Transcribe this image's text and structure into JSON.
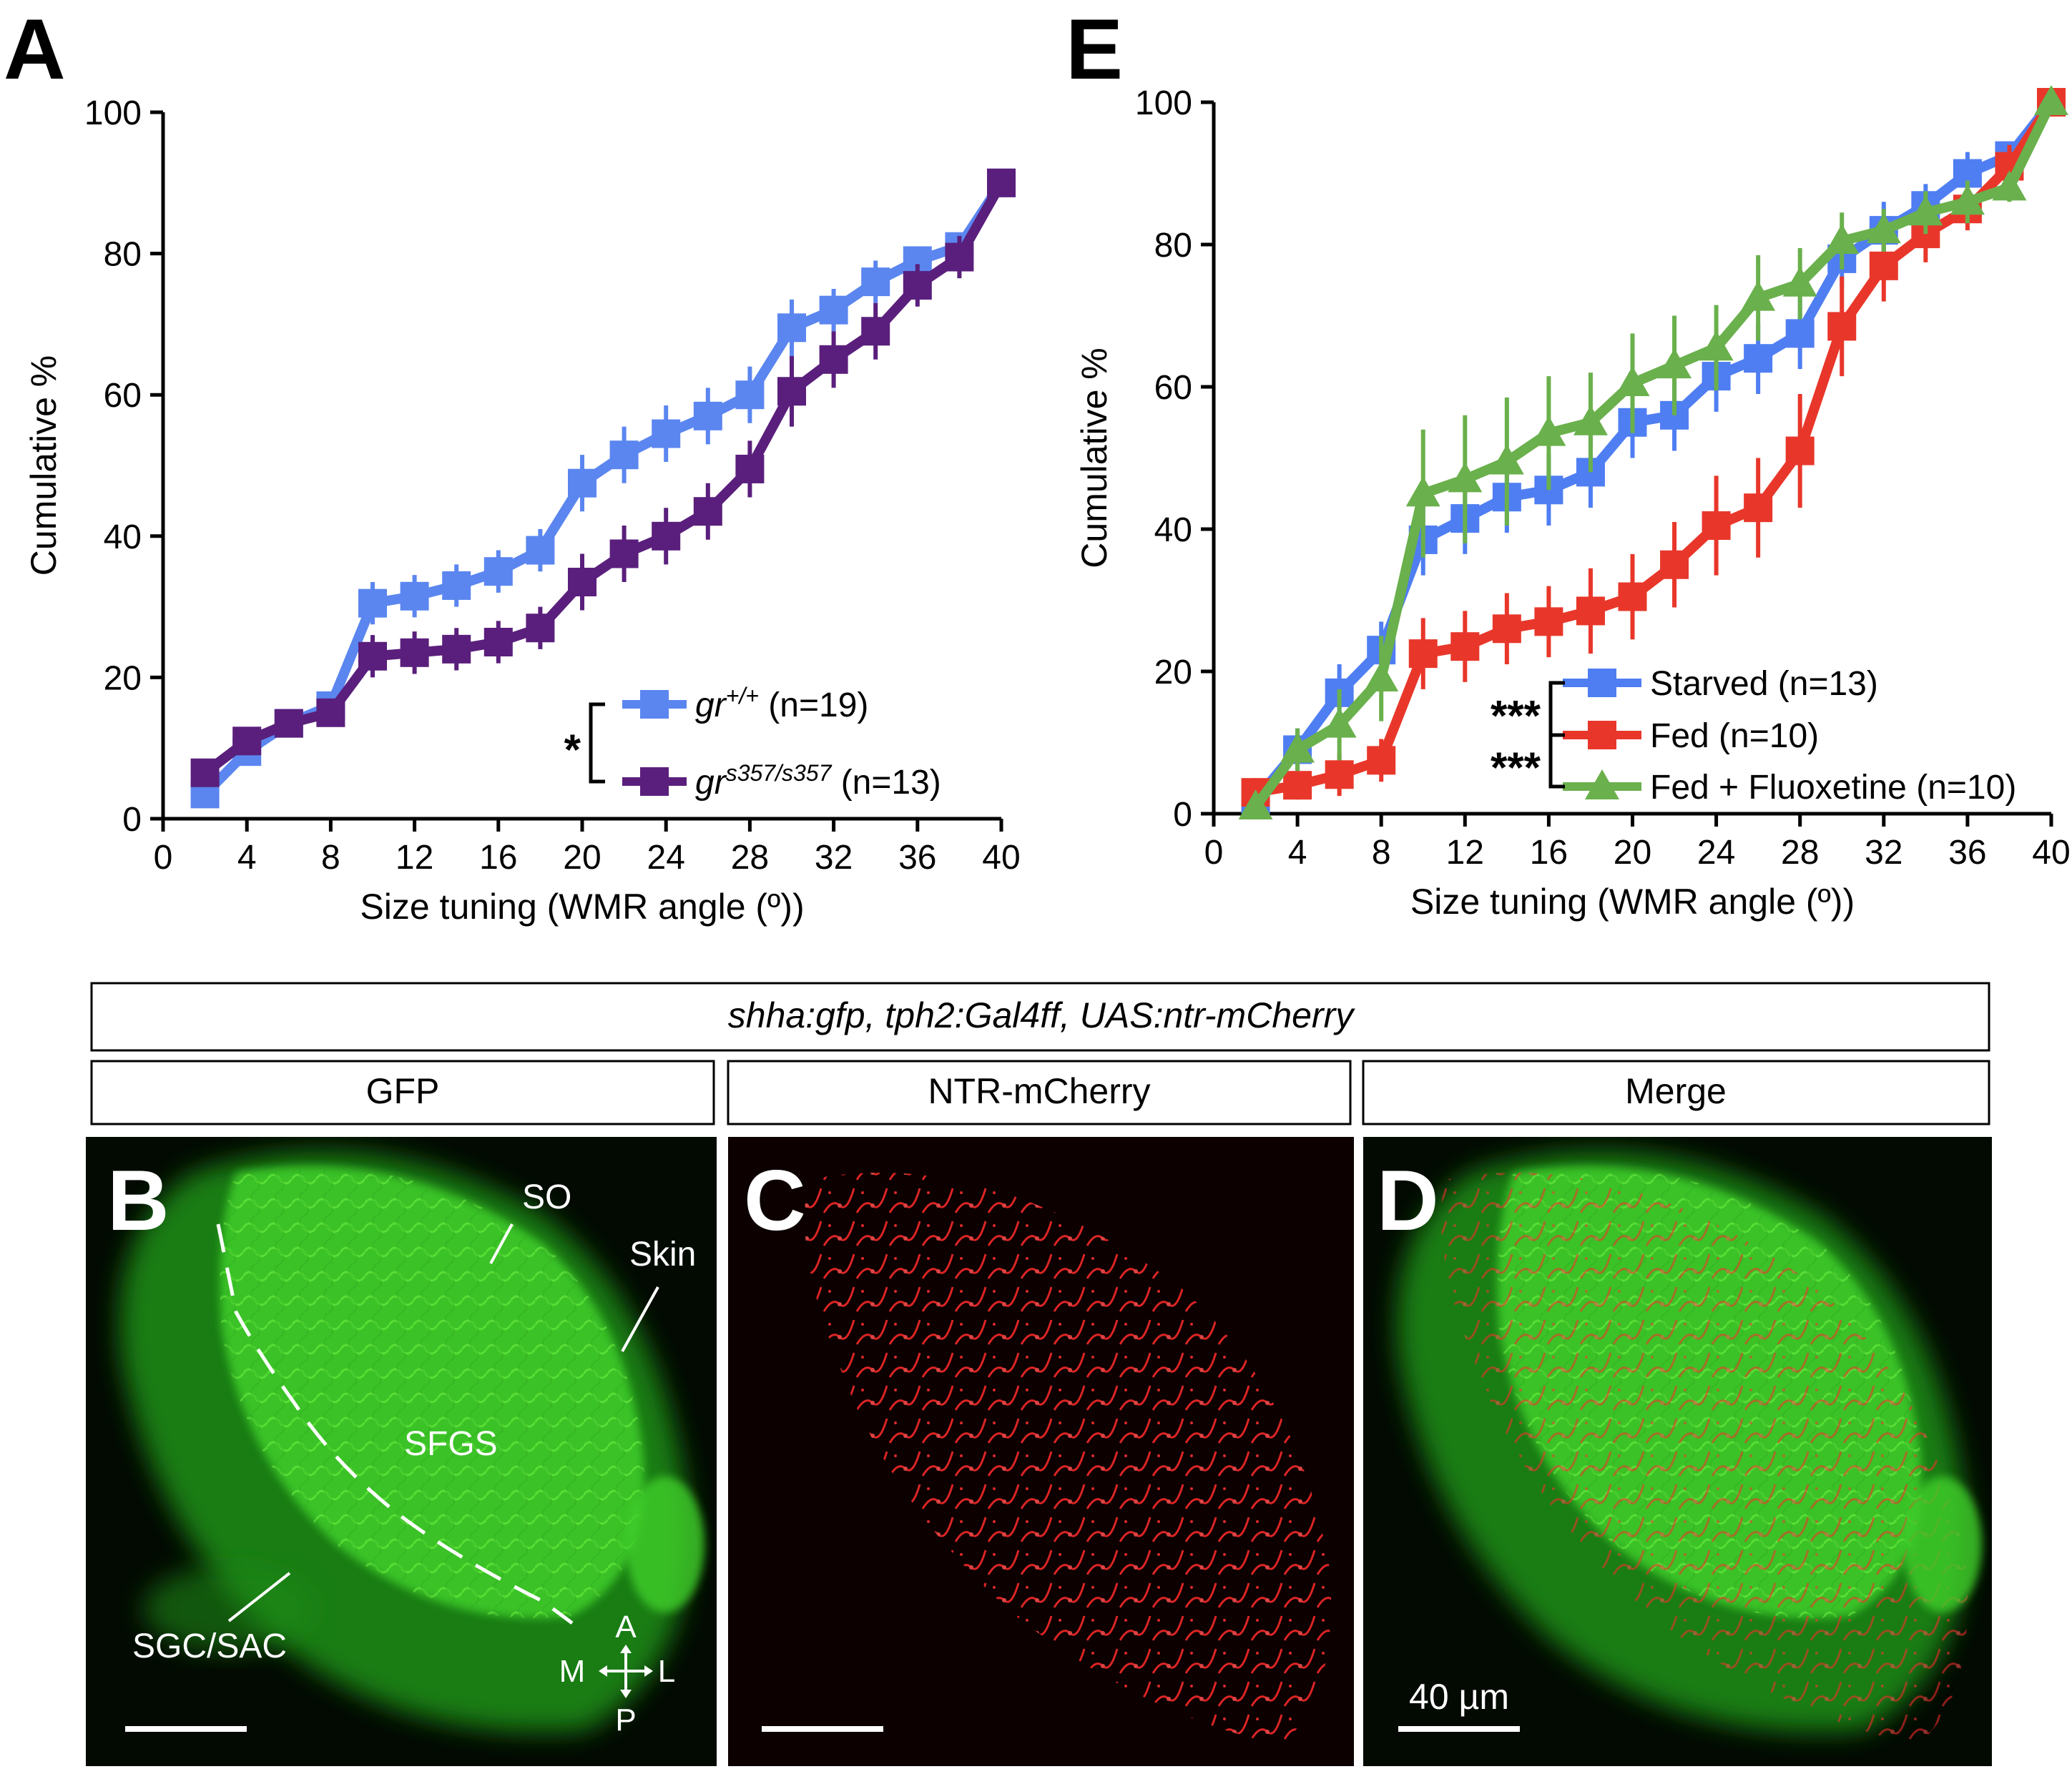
{
  "colors": {
    "gr_wt": "#5b86f0",
    "gr_mut": "#5a1f7c",
    "starved": "#4f7ef2",
    "fed": "#e8372a",
    "fluoxetine": "#6ab04c",
    "gfp": "#3fcf2a",
    "mcherry": "#e02020"
  },
  "panels": {
    "A": "A",
    "B": "B",
    "C": "C",
    "D": "D",
    "E": "E"
  },
  "header": {
    "genotype": "shha:gfp, tph2:Gal4ff, UAS:ntr-mCherry",
    "col_gfp": "GFP",
    "col_mcherry": "NTR-mCherry",
    "col_merge": "Merge"
  },
  "image_annotations": {
    "so": "SO",
    "skin": "Skin",
    "sfgs": "SFGS",
    "sgc_sac": "SGC/SAC",
    "axis_a": "A",
    "axis_p": "P",
    "axis_m": "M",
    "axis_l": "L",
    "scale_label": "40 µm"
  },
  "chart_data": [
    {
      "id": "A",
      "type": "line",
      "xlabel": "Size tuning (WMR angle (º))",
      "ylabel": "Cumulative %",
      "xlim": [
        0,
        40
      ],
      "ylim": [
        0,
        100
      ],
      "xticks": [
        0,
        4,
        8,
        12,
        16,
        20,
        24,
        28,
        32,
        36,
        40
      ],
      "yticks": [
        0,
        20,
        40,
        60,
        80,
        100
      ],
      "x": [
        2,
        4,
        6,
        8,
        10,
        12,
        14,
        16,
        18,
        20,
        22,
        24,
        26,
        28,
        30,
        32,
        34,
        36,
        38,
        40
      ],
      "series": [
        {
          "name": "gr+/+ (n=19)",
          "legend_base": "gr",
          "legend_sup": "+/+",
          "legend_rest": " (n=19)",
          "color": "#5b86f0",
          "marker": "square",
          "values": [
            3.5,
            9.5,
            13.5,
            16,
            30.5,
            31.5,
            33,
            35,
            38,
            47.5,
            51.5,
            54.5,
            57,
            60,
            69.5,
            72,
            76,
            79,
            81,
            90
          ],
          "errors": [
            2,
            2,
            2,
            2,
            3,
            3,
            3,
            3,
            3,
            4,
            4,
            4,
            4,
            4,
            4,
            3,
            3,
            2,
            2,
            0
          ]
        },
        {
          "name": "grs357/s357 (n=13)",
          "legend_base": "gr",
          "legend_sup": "s357/s357",
          "legend_rest": " (n=13)",
          "color": "#5a1f7c",
          "marker": "square",
          "values": [
            6.5,
            11,
            13.5,
            15,
            23,
            23.5,
            24,
            25,
            27,
            33.5,
            37.5,
            40,
            43.5,
            49.5,
            60.5,
            65,
            69,
            75.5,
            79.5,
            90
          ],
          "errors": [
            2,
            2,
            2,
            2,
            3,
            3,
            3,
            3,
            3,
            4,
            4,
            4,
            4,
            4,
            5,
            4,
            4,
            3,
            3,
            0
          ]
        }
      ],
      "significance": "*"
    },
    {
      "id": "E",
      "type": "line",
      "xlabel": "Size tuning (WMR angle (º))",
      "ylabel": "Cumulative %",
      "xlim": [
        0,
        40
      ],
      "ylim": [
        0,
        100
      ],
      "xticks": [
        0,
        4,
        8,
        12,
        16,
        20,
        24,
        28,
        32,
        36,
        40
      ],
      "yticks": [
        0,
        20,
        40,
        60,
        80,
        100
      ],
      "x": [
        2,
        4,
        6,
        8,
        10,
        12,
        14,
        16,
        18,
        20,
        22,
        24,
        26,
        28,
        30,
        32,
        34,
        36,
        38,
        40
      ],
      "series": [
        {
          "name": "Starved (n=13)",
          "color": "#4f7ef2",
          "marker": "square",
          "values": [
            2,
            9,
            17,
            23,
            38.5,
            41.5,
            44.5,
            45.5,
            48,
            55,
            56,
            61.5,
            64,
            67.5,
            78,
            82,
            85.5,
            90,
            92.5,
            100
          ],
          "errors": [
            2,
            3,
            4,
            4,
            5,
            5,
            5,
            5,
            5,
            5,
            5,
            5,
            5,
            5,
            4,
            4,
            3,
            3,
            2,
            0
          ]
        },
        {
          "name": "Fed (n=10)",
          "color": "#e8372a",
          "marker": "square",
          "values": [
            3,
            4,
            5.5,
            7.5,
            22.5,
            23.5,
            26,
            27,
            28.5,
            30.5,
            35,
            40.5,
            43,
            51,
            68.5,
            77,
            81.5,
            85,
            91,
            100
          ],
          "errors": [
            2,
            2,
            3,
            3,
            5,
            5,
            5,
            5,
            6,
            6,
            6,
            7,
            7,
            8,
            7,
            5,
            4,
            3,
            3,
            0
          ]
        },
        {
          "name": "Fed + Fluoxetine (n=10)",
          "color": "#6ab04c",
          "marker": "triangle",
          "values": [
            1,
            9,
            12.5,
            19,
            45,
            47,
            49.5,
            53.5,
            55,
            60.5,
            63,
            65.5,
            72.5,
            74.5,
            80.5,
            82,
            84.5,
            86,
            88,
            100
          ],
          "errors": [
            1,
            3,
            5,
            6,
            9,
            9,
            9,
            8,
            7,
            7,
            7,
            6,
            6,
            5,
            4,
            3,
            3,
            3,
            2,
            0
          ]
        }
      ],
      "significance": [
        "***",
        "***"
      ]
    }
  ]
}
